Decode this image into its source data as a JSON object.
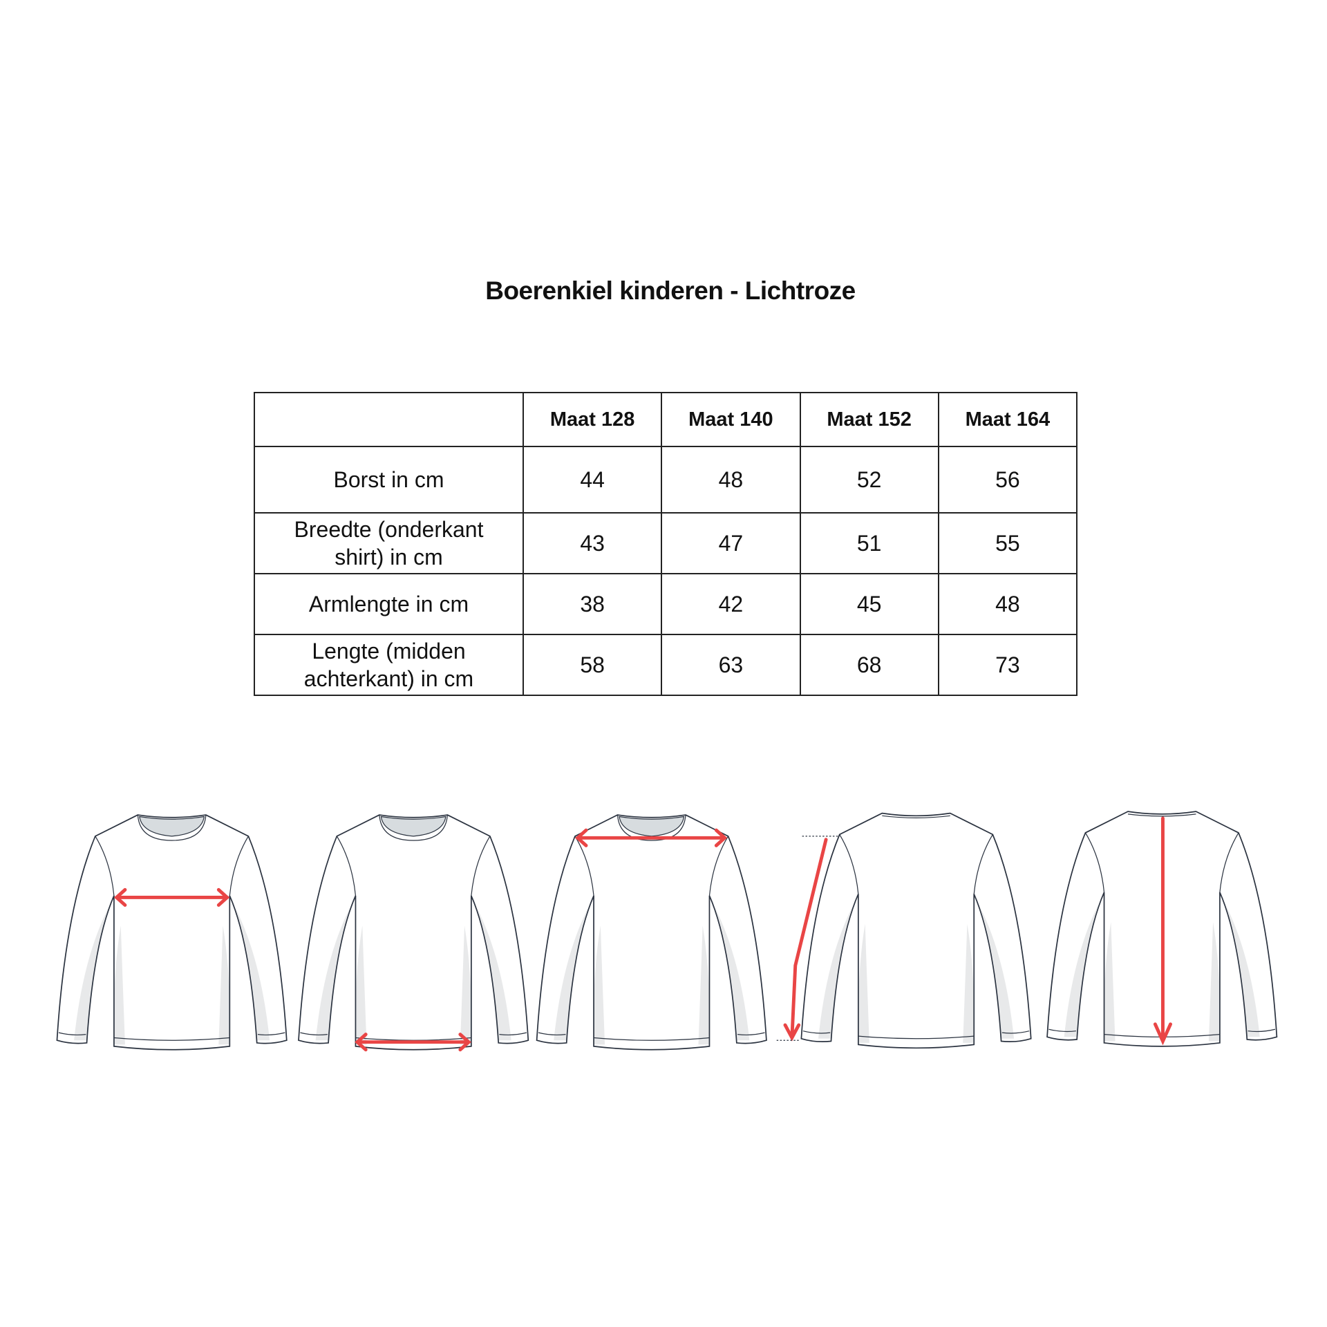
{
  "title": "Boerenkiel kinderen - Lichtroze",
  "table": {
    "headers": [
      "",
      "Maat 128",
      "Maat 140",
      "Maat 152",
      "Maat 164"
    ],
    "rows": [
      {
        "label": "Borst in cm",
        "values": [
          "44",
          "48",
          "52",
          "56"
        ]
      },
      {
        "label": "Breedte (onderkant shirt) in cm",
        "values": [
          "43",
          "47",
          "51",
          "55"
        ]
      },
      {
        "label": "Armlengte in cm",
        "values": [
          "38",
          "42",
          "45",
          "48"
        ]
      },
      {
        "label": "Lengte (midden achterkant) in cm",
        "values": [
          "58",
          "63",
          "68",
          "73"
        ]
      }
    ]
  },
  "illustrations": [
    {
      "view": "front",
      "measure": "chest"
    },
    {
      "view": "front",
      "measure": "hem width"
    },
    {
      "view": "front",
      "measure": "shoulder width"
    },
    {
      "view": "back",
      "measure": "sleeve length"
    },
    {
      "view": "back",
      "measure": "center back length"
    }
  ],
  "colors": {
    "arrow": "#e94545",
    "outline": "#2b3340",
    "shade": "#e8e9ea",
    "collar": "#d7dcdf"
  }
}
